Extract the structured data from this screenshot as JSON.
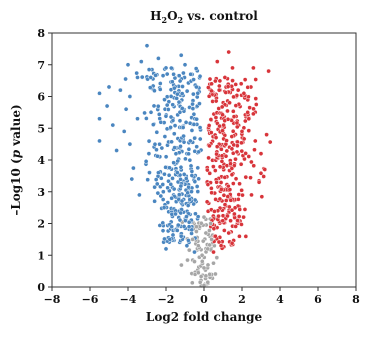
{
  "chart_data": {
    "type": "scatter",
    "title": {
      "prefix": "H",
      "sub1": "2",
      "mid": "O",
      "sub2": "2",
      "suffix": " vs. control"
    },
    "xlabel": "Log2 fold change",
    "ylabel": {
      "prefix": "–Log10 (",
      "italic": "p",
      "suffix": " value)"
    },
    "xlim": [
      -8,
      8
    ],
    "ylim": [
      0,
      8
    ],
    "xticks": [
      -8,
      -6,
      -4,
      -2,
      0,
      2,
      4,
      6,
      8
    ],
    "yticks": [
      0,
      1,
      2,
      3,
      4,
      5,
      6,
      7,
      8
    ],
    "grid": false,
    "series": [
      {
        "color": "#4a86c0",
        "points": [
          [
            -3.0,
            7.6
          ],
          [
            -4.0,
            7.0
          ],
          [
            -5.0,
            6.3
          ],
          [
            -5.5,
            6.1
          ],
          [
            -5.1,
            5.7
          ],
          [
            -4.4,
            6.2
          ],
          [
            -3.9,
            6.0
          ],
          [
            -3.5,
            6.6
          ],
          [
            -3.3,
            7.1
          ],
          [
            -2.8,
            6.6
          ],
          [
            -2.4,
            7.2
          ],
          [
            -2.0,
            6.9
          ],
          [
            -1.6,
            6.7
          ],
          [
            -1.2,
            7.3
          ],
          [
            -1.0,
            7.0
          ],
          [
            -0.7,
            6.7
          ],
          [
            -0.4,
            6.3
          ],
          [
            -5.5,
            5.3
          ],
          [
            -4.8,
            5.1
          ],
          [
            -5.5,
            4.6
          ],
          [
            -4.2,
            4.9
          ],
          [
            -3.5,
            5.3
          ],
          [
            -4.1,
            5.6
          ],
          [
            -4.6,
            4.3
          ],
          [
            -3.9,
            4.5
          ],
          [
            -3.4,
            2.9
          ],
          [
            -2.9,
            4.2
          ],
          [
            -2.4,
            3.6
          ],
          [
            -2.6,
            2.7
          ],
          [
            -2.1,
            2.5
          ],
          [
            -3.8,
            3.4
          ],
          [
            -1.7,
            1.9
          ],
          [
            -1.2,
            1.6
          ],
          [
            -0.9,
            1.3
          ],
          [
            -1.5,
            2.3
          ],
          [
            -1.8,
            1.5
          ],
          [
            -0.5,
            1.1
          ],
          [
            -2.0,
            1.2
          ]
        ]
      },
      {
        "color": "#d8343a",
        "points": [
          [
            0.4,
            6.4
          ],
          [
            0.8,
            6.2
          ],
          [
            1.1,
            6.6
          ],
          [
            1.3,
            7.4
          ],
          [
            1.5,
            6.9
          ],
          [
            1.8,
            6.2
          ],
          [
            2.1,
            6.1
          ],
          [
            2.6,
            6.9
          ],
          [
            3.4,
            6.8
          ],
          [
            2.3,
            5.5
          ],
          [
            2.7,
            4.6
          ],
          [
            3.0,
            4.2
          ],
          [
            3.2,
            3.7
          ],
          [
            2.9,
            3.3
          ],
          [
            2.5,
            2.9
          ],
          [
            0.6,
            1.6
          ],
          [
            0.9,
            1.3
          ],
          [
            0.5,
            1.1
          ],
          [
            1.3,
            1.7
          ],
          [
            1.6,
            2.3
          ],
          [
            0.7,
            7.1
          ],
          [
            2.0,
            4.9
          ]
        ]
      },
      {
        "color": "#a6a6a6",
        "points": [
          [
            0.0,
            0.05
          ],
          [
            -0.2,
            0.15
          ],
          [
            0.2,
            0.15
          ],
          [
            0.1,
            0.35
          ],
          [
            -0.3,
            0.45
          ],
          [
            0.3,
            0.4
          ],
          [
            0.0,
            0.6
          ],
          [
            -0.5,
            0.8
          ],
          [
            0.5,
            0.75
          ],
          [
            -0.1,
            1.0
          ],
          [
            0.2,
            1.2
          ],
          [
            -0.3,
            1.3
          ],
          [
            0.4,
            1.5
          ],
          [
            -0.6,
            1.5
          ],
          [
            0.1,
            1.7
          ],
          [
            -0.4,
            1.9
          ],
          [
            0.35,
            2.0
          ],
          [
            0.0,
            2.2
          ]
        ]
      }
    ],
    "clusters": [
      {
        "color": "#4a86c0",
        "count": 360,
        "x_center": -1.3,
        "x_spread": 0.9,
        "y_min": 1.4,
        "y_max": 6.9
      },
      {
        "color": "#d8343a",
        "count": 320,
        "x_center": 1.2,
        "x_spread": 0.75,
        "y_min": 1.2,
        "y_max": 6.6
      },
      {
        "color": "#a6a6a6",
        "count": 70,
        "x_center": 0.0,
        "x_spread": 0.45,
        "y_min": 0.0,
        "y_max": 2.2
      }
    ]
  }
}
